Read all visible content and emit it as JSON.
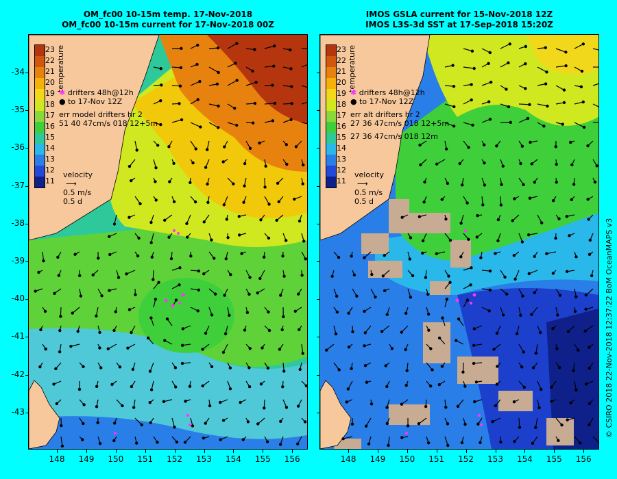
{
  "left_panel": {
    "title_line1": "OM_fc00 10-15m temp. 17-Nov-2018",
    "title_line2": "OM_fc00 10-15m current for 17-Nov-2018 00Z",
    "legend": {
      "drifters": "drifters 48h@12h",
      "to": "to 17-Nov 12Z",
      "err_title": "err model drifters hr 2",
      "err_values": "51 40 47cm/s 018 12+5m",
      "velocity": "velocity",
      "speed": "0.5 m/s",
      "time": "0.5 d"
    }
  },
  "right_panel": {
    "title_line1": "IMOS GSLA current for 15-Nov-2018 12Z",
    "title_line2": "IMOS L3S-3d SST at 17-Sep-2018 15:20Z",
    "legend": {
      "drifters": "drifters 48h@12h",
      "to": "to 17-Nov 12Z",
      "err_title": "err alt drifters hr 2",
      "err_values1": "27 36 47cm/s 018 12+5m",
      "err_values2": "27 36 47cm/s 018 12m",
      "velocity": "velocity",
      "speed": "0.5 m/s",
      "time": "0.5 d"
    }
  },
  "colorbar": {
    "title": "temperature",
    "labels": [
      "23",
      "22",
      "21",
      "20",
      "19",
      "18",
      "17",
      "16",
      "15",
      "14",
      "13",
      "12",
      "11"
    ],
    "colors": [
      "#b5350f",
      "#d1570f",
      "#e8820f",
      "#f6b00a",
      "#f2d81a",
      "#cfe820",
      "#8bd83a",
      "#3fcf3a",
      "#2ec99a",
      "#2ab7ea",
      "#2a7ee8",
      "#2448d8",
      "#10208a"
    ]
  },
  "axes": {
    "lat_labels": [
      "-34",
      "-35",
      "-36",
      "-37",
      "-38",
      "-39",
      "-40",
      "-41",
      "-42",
      "-43"
    ],
    "lon_labels": [
      "148",
      "149",
      "150",
      "151",
      "152",
      "153",
      "154",
      "155",
      "156"
    ]
  },
  "copyright": "© CSIRO 2018   22-Nov-2018 12:37:22 BoM OceanMAPS v3"
}
